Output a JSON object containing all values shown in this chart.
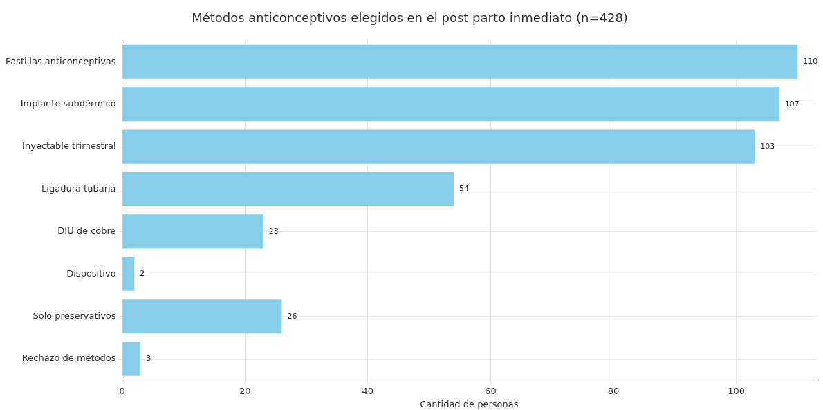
{
  "chart_data": {
    "type": "bar",
    "orientation": "horizontal",
    "title": "Métodos anticonceptivos elegidos en el post parto inmediato (n=428)",
    "xlabel": "Cantidad de personas",
    "categories": [
      "Pastillas anticonceptivas",
      "Implante subdérmico",
      "Inyectable trimestral",
      "Ligadura tubaria",
      "DIU de cobre",
      "Dispositivo",
      "Solo preservativos",
      "Rechazo de métodos"
    ],
    "values": [
      110,
      107,
      103,
      54,
      23,
      2,
      26,
      3
    ],
    "color": "#87ceeb",
    "xlim": [
      0,
      113
    ],
    "xticks": [
      0,
      20,
      40,
      60,
      80,
      100
    ],
    "grid": true,
    "data_labels": true
  }
}
